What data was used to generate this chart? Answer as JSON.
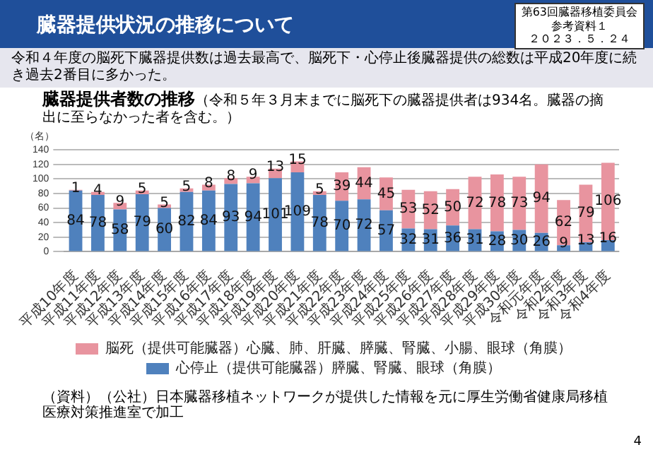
{
  "chart_data": {
    "type": "bar",
    "title": "臓器提供者数の推移",
    "subtitle": "（令和５年３月末までに脳死下の臓器提供者は934名。臓器の摘出に至らなかった者を含む。）",
    "ylabel": "（名）",
    "annotations": [
      "臓器提供状況の推移について",
      "第63回臓器移植委員会",
      "参考資料１",
      "２０２３．５．２４",
      "令和４年度の脳死下臓器提供数は過去最高で、脳死下・心停止後臓器提供の総数は平成20年度に続き過去2番目に多かった。",
      "（資料）（公社）日本臓器移植ネットワークが提供した情報を元に厚生労働省健康局移植医療対策推進室で加工",
      "4"
    ],
    "categories": [
      "平成10年度",
      "平成11年度",
      "平成12年度",
      "平成13年度",
      "平成14年度",
      "平成15年度",
      "平成16年度",
      "平成17年度",
      "平成18年度",
      "平成19年度",
      "平成20年度",
      "平成21年度",
      "平成22年度",
      "平成23年度",
      "平成24年度",
      "平成25年度",
      "平成26年度",
      "平成27年度",
      "平成28年度",
      "平成29年度",
      "平成30年度",
      "令和元年度",
      "令和2年度",
      "令和3年度",
      "令和4年度"
    ],
    "series": [
      {
        "name": "心停止（提供可能臓器）膵臓、腎臓、眼球（角膜）",
        "color": "#4f81bd",
        "values": [
          84,
          78,
          58,
          79,
          60,
          82,
          84,
          93,
          94,
          101,
          109,
          78,
          70,
          72,
          57,
          32,
          31,
          36,
          31,
          28,
          30,
          26,
          9,
          13,
          16
        ]
      },
      {
        "name": "脳死（提供可能臓器）心臓、肺、肝臓、膵臓、腎臓、小腸、眼球（角膜）",
        "color": "#e8949f",
        "values": [
          1,
          4,
          9,
          5,
          5,
          5,
          8,
          8,
          9,
          13,
          15,
          5,
          39,
          44,
          45,
          53,
          52,
          50,
          72,
          78,
          73,
          94,
          62,
          79,
          106
        ]
      }
    ],
    "stacked": true,
    "ylim": [
      0,
      140
    ],
    "yticks": [
      0,
      20,
      40,
      60,
      80,
      100,
      120,
      140
    ],
    "grid": "y",
    "legend": "bottom",
    "data_labels": true
  }
}
